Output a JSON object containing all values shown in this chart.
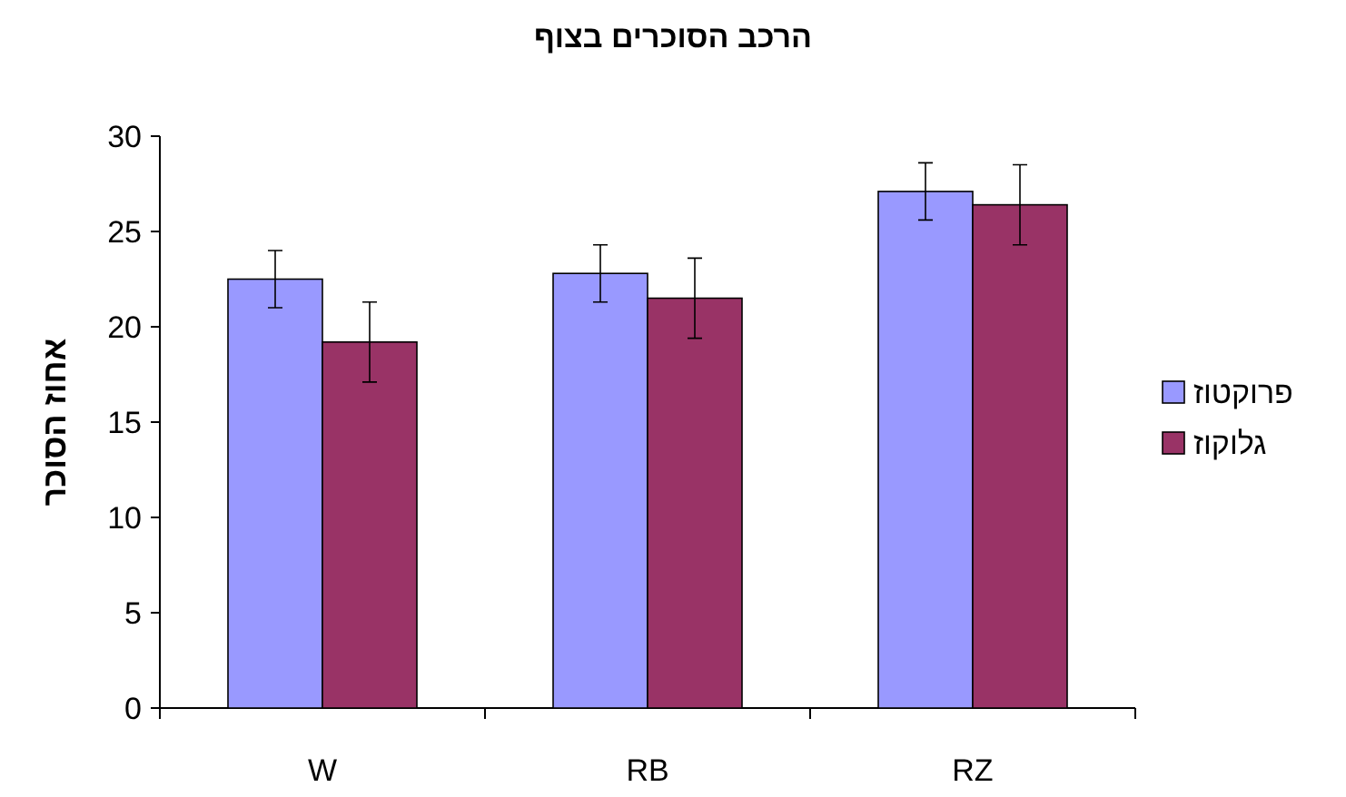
{
  "chart_data": {
    "type": "bar",
    "title": "הרכב הסוכרים בצוף",
    "ylabel": "אחוז הסוכר",
    "categories": [
      "W",
      "RB",
      "RZ"
    ],
    "series": [
      {
        "name": "פרוקטוז",
        "color": "#9999ff",
        "values": [
          22.5,
          22.8,
          27.1
        ],
        "errors": [
          1.5,
          1.5,
          1.5
        ]
      },
      {
        "name": "גלוקוז",
        "color": "#993366",
        "values": [
          19.2,
          21.5,
          26.4
        ],
        "errors": [
          2.1,
          2.1,
          2.1
        ]
      }
    ],
    "ylim": [
      0,
      30
    ],
    "yticks": [
      0,
      5,
      10,
      15,
      20,
      25,
      30
    ],
    "legend": "right"
  }
}
